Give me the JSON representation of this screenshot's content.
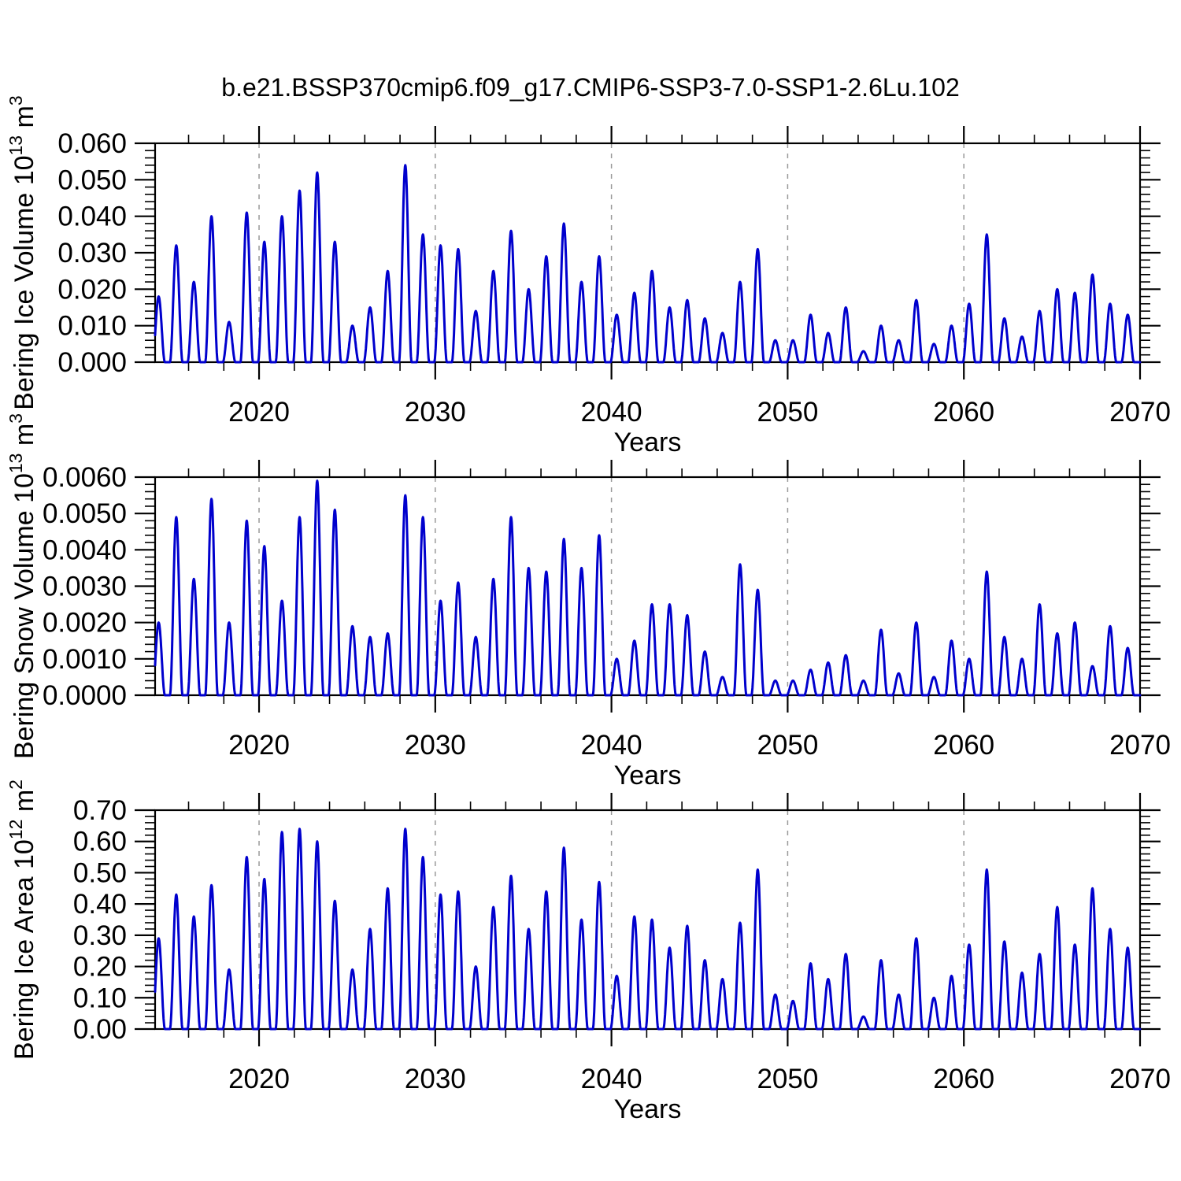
{
  "figure": {
    "title": "b.e21.BSSP370cmip6.f09_g17.CMIP6-SSP3-7.0-SSP1-2.6Lu.102",
    "background_color": "#ffffff",
    "line_color": "#0000cd",
    "frame_color": "#000000",
    "grid_color": "#999999",
    "text_color": "#000000"
  },
  "chart_data": [
    {
      "type": "line",
      "id": "ice-volume",
      "ylabel": "Bering Ice Volume 10^13 m^3",
      "ylabel_parts": [
        {
          "t": "Bering Ice Volume 10"
        },
        {
          "t": "13",
          "sup": true
        },
        {
          "t": " m"
        },
        {
          "t": "3",
          "sup": true
        }
      ],
      "xlabel": "Years",
      "x_range": [
        2014.1,
        2070
      ],
      "x_major_ticks": [
        2020,
        2030,
        2040,
        2050,
        2060,
        2070
      ],
      "x_minor_tick_step_years": 2,
      "x_gridlines": [
        2020,
        2030,
        2040,
        2050,
        2060
      ],
      "grid_style": "dashed",
      "ylim": [
        0,
        0.06
      ],
      "y_major_step": 0.01,
      "y_minor_step": 0.002,
      "y_decimals": 3,
      "seasonal_peak_phase": 0.3,
      "seasonal_peak_half_width": 0.36,
      "series": [
        {
          "name": "Bering Ice Volume",
          "start_year": 2014,
          "annual_peak_values": [
            0.018,
            0.032,
            0.022,
            0.04,
            0.011,
            0.041,
            0.033,
            0.04,
            0.047,
            0.052,
            0.033,
            0.01,
            0.015,
            0.025,
            0.054,
            0.035,
            0.032,
            0.031,
            0.014,
            0.025,
            0.036,
            0.02,
            0.029,
            0.038,
            0.022,
            0.029,
            0.013,
            0.019,
            0.025,
            0.015,
            0.017,
            0.012,
            0.008,
            0.022,
            0.031,
            0.006,
            0.006,
            0.013,
            0.008,
            0.015,
            0.003,
            0.01,
            0.006,
            0.017,
            0.005,
            0.01,
            0.016,
            0.035,
            0.012,
            0.007,
            0.014,
            0.02,
            0.019,
            0.024,
            0.016,
            0.013
          ]
        }
      ]
    },
    {
      "type": "line",
      "id": "snow-volume",
      "ylabel": "Bering Snow Volume 10^13 m^3",
      "ylabel_parts": [
        {
          "t": "Bering Snow Volume 10"
        },
        {
          "t": "13",
          "sup": true
        },
        {
          "t": " m"
        },
        {
          "t": "3",
          "sup": true
        }
      ],
      "xlabel": "Years",
      "x_range": [
        2014.1,
        2070
      ],
      "x_major_ticks": [
        2020,
        2030,
        2040,
        2050,
        2060,
        2070
      ],
      "x_minor_tick_step_years": 2,
      "x_gridlines": [
        2020,
        2030,
        2040,
        2050,
        2060
      ],
      "grid_style": "dashed",
      "ylim": [
        0,
        0.006
      ],
      "y_major_step": 0.001,
      "y_minor_step": 0.0002,
      "y_decimals": 4,
      "seasonal_peak_phase": 0.3,
      "seasonal_peak_half_width": 0.36,
      "series": [
        {
          "name": "Bering Snow Volume",
          "start_year": 2014,
          "annual_peak_values": [
            0.002,
            0.0049,
            0.0032,
            0.0054,
            0.002,
            0.0048,
            0.0041,
            0.0026,
            0.0049,
            0.0059,
            0.0051,
            0.0019,
            0.0016,
            0.0017,
            0.0055,
            0.0049,
            0.0026,
            0.0031,
            0.0016,
            0.0032,
            0.0049,
            0.0035,
            0.0034,
            0.0043,
            0.0035,
            0.0044,
            0.001,
            0.0015,
            0.0025,
            0.0025,
            0.0022,
            0.0012,
            0.0005,
            0.0036,
            0.0029,
            0.0004,
            0.0004,
            0.0007,
            0.0009,
            0.0011,
            0.0004,
            0.0018,
            0.0006,
            0.002,
            0.0005,
            0.0015,
            0.001,
            0.0034,
            0.0016,
            0.001,
            0.0025,
            0.0017,
            0.002,
            0.0008,
            0.0019,
            0.0013
          ]
        }
      ]
    },
    {
      "type": "line",
      "id": "ice-area",
      "ylabel": "Bering Ice Area 10^12 m^2",
      "ylabel_parts": [
        {
          "t": "Bering Ice Area 10"
        },
        {
          "t": "12",
          "sup": true
        },
        {
          "t": " m"
        },
        {
          "t": "2",
          "sup": true
        }
      ],
      "xlabel": "Years",
      "x_range": [
        2014.1,
        2070
      ],
      "x_major_ticks": [
        2020,
        2030,
        2040,
        2050,
        2060,
        2070
      ],
      "x_minor_tick_step_years": 2,
      "x_gridlines": [
        2020,
        2030,
        2040,
        2050,
        2060
      ],
      "grid_style": "dashed",
      "ylim": [
        0,
        0.7
      ],
      "y_major_step": 0.1,
      "y_minor_step": 0.02,
      "y_decimals": 2,
      "seasonal_peak_phase": 0.3,
      "seasonal_peak_half_width": 0.36,
      "series": [
        {
          "name": "Bering Ice Area",
          "start_year": 2014,
          "annual_peak_values": [
            0.29,
            0.43,
            0.36,
            0.46,
            0.19,
            0.55,
            0.48,
            0.63,
            0.64,
            0.6,
            0.41,
            0.19,
            0.32,
            0.45,
            0.64,
            0.55,
            0.43,
            0.44,
            0.2,
            0.39,
            0.49,
            0.32,
            0.44,
            0.58,
            0.35,
            0.47,
            0.17,
            0.36,
            0.35,
            0.26,
            0.33,
            0.22,
            0.16,
            0.34,
            0.51,
            0.11,
            0.09,
            0.21,
            0.16,
            0.24,
            0.04,
            0.22,
            0.11,
            0.29,
            0.1,
            0.17,
            0.27,
            0.51,
            0.28,
            0.18,
            0.24,
            0.39,
            0.27,
            0.45,
            0.32,
            0.26
          ]
        }
      ]
    }
  ]
}
